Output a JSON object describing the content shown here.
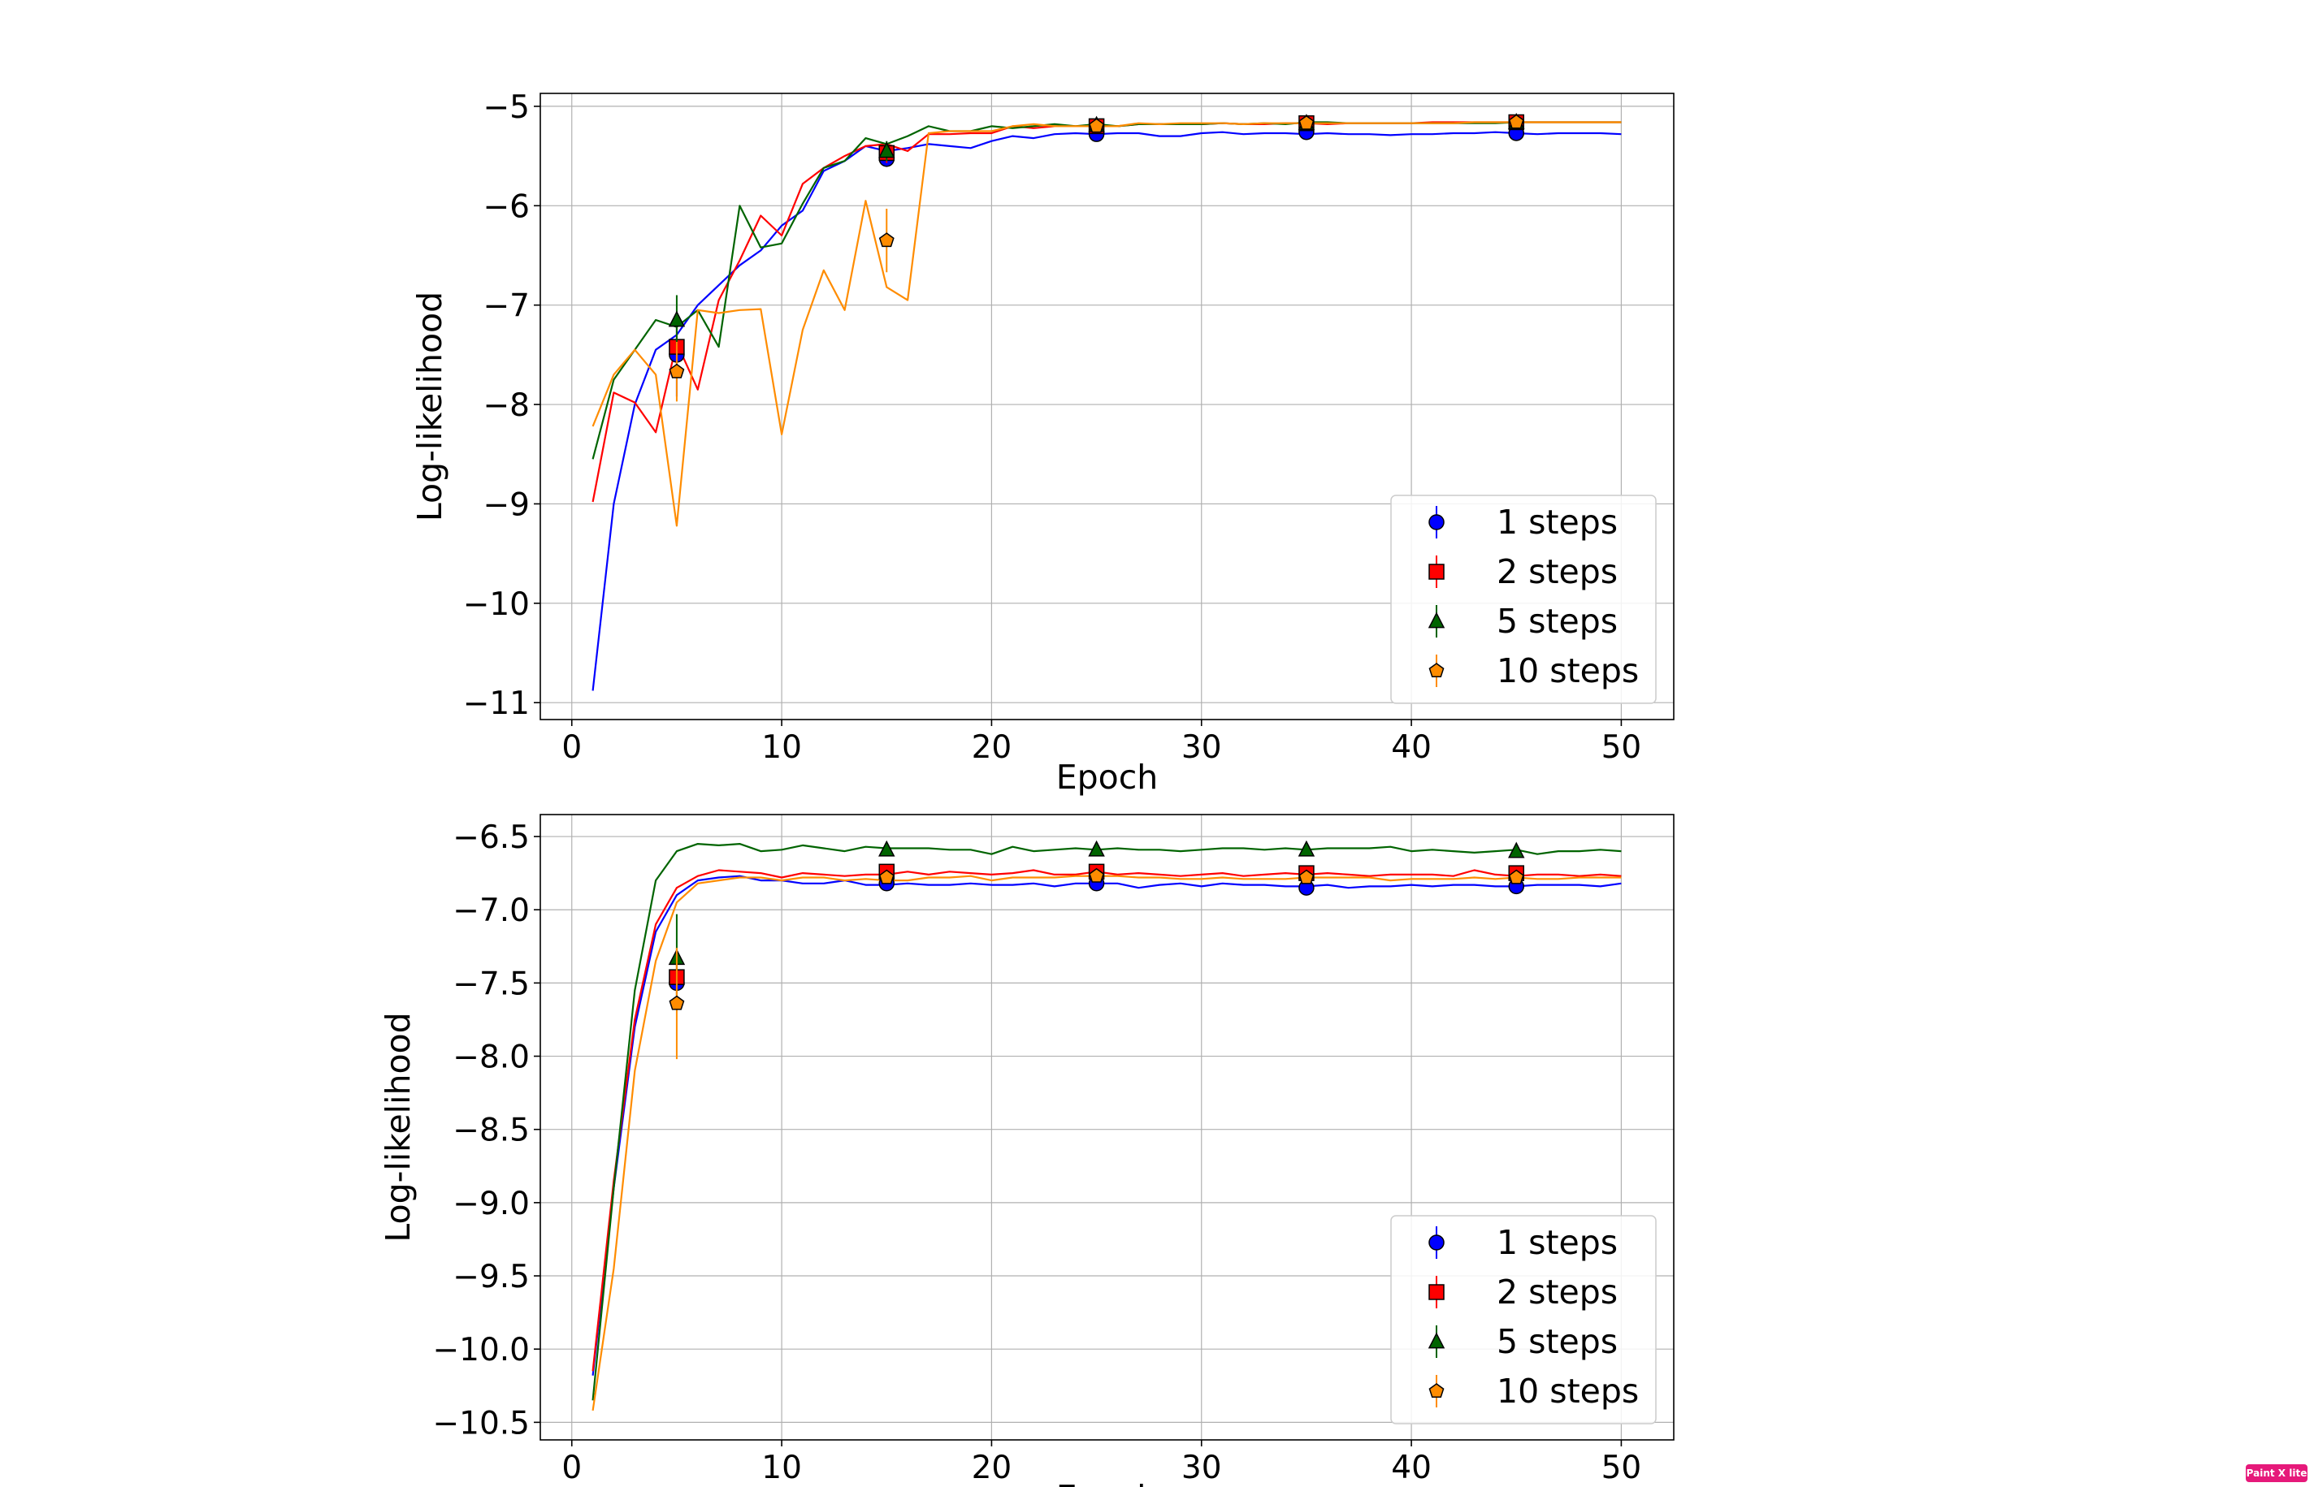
{
  "badge": {
    "text": "Paint X lite"
  },
  "colors": {
    "1 steps": "#0000ff",
    "2 steps": "#ff0000",
    "5 steps": "#006400",
    "10 steps": "#ff8c00",
    "grid": "#b0b0b0"
  },
  "chart_data": [
    {
      "type": "line",
      "title": "",
      "xlabel": "Epoch",
      "ylabel": "Log-likelihood",
      "xlim": [
        -1.5,
        52.5
      ],
      "ylim": [
        -11.17,
        -4.87
      ],
      "xticks": [
        0,
        10,
        20,
        30,
        40,
        50
      ],
      "xtick_labels": [
        "0",
        "10",
        "20",
        "30",
        "40",
        "50"
      ],
      "yticks": [
        -11,
        -10,
        -9,
        -8,
        -7,
        -6,
        -5
      ],
      "ytick_labels": [
        "−11",
        "−10",
        "−9",
        "−8",
        "−7",
        "−6",
        "−5"
      ],
      "grid": true,
      "legend_position": "lower right",
      "x": [
        1,
        2,
        3,
        4,
        5,
        6,
        7,
        8,
        9,
        10,
        11,
        12,
        13,
        14,
        15,
        16,
        17,
        18,
        19,
        20,
        21,
        22,
        23,
        24,
        25,
        26,
        27,
        28,
        29,
        30,
        31,
        32,
        33,
        34,
        35,
        36,
        37,
        38,
        39,
        40,
        41,
        42,
        43,
        44,
        45,
        46,
        47,
        48,
        49,
        50
      ],
      "series": [
        {
          "name": "1 steps",
          "marker": "circle",
          "values": [
            -10.88,
            -9.0,
            -8.0,
            -7.45,
            -7.3,
            -7.0,
            -6.8,
            -6.6,
            -6.45,
            -6.2,
            -6.05,
            -5.65,
            -5.55,
            -5.4,
            -5.45,
            -5.42,
            -5.38,
            -5.4,
            -5.42,
            -5.35,
            -5.3,
            -5.32,
            -5.28,
            -5.27,
            -5.28,
            -5.27,
            -5.27,
            -5.3,
            -5.3,
            -5.27,
            -5.26,
            -5.28,
            -5.27,
            -5.27,
            -5.28,
            -5.27,
            -5.28,
            -5.28,
            -5.29,
            -5.28,
            -5.28,
            -5.27,
            -5.27,
            -5.26,
            -5.27,
            -5.28,
            -5.27,
            -5.27,
            -5.27,
            -5.28
          ],
          "markers": {
            "x": [
              5,
              15,
              25,
              35,
              45
            ],
            "y": [
              -7.5,
              -5.53,
              -5.28,
              -5.26,
              -5.27
            ],
            "err": [
              0.42,
              0.08,
              0.04,
              0.03,
              0.03
            ]
          }
        },
        {
          "name": "2 steps",
          "marker": "square",
          "values": [
            -8.98,
            -7.88,
            -7.98,
            -8.28,
            -7.38,
            -7.85,
            -6.95,
            -6.55,
            -6.1,
            -6.3,
            -5.78,
            -5.62,
            -5.5,
            -5.4,
            -5.38,
            -5.45,
            -5.28,
            -5.28,
            -5.27,
            -5.27,
            -5.2,
            -5.22,
            -5.2,
            -5.2,
            -5.2,
            -5.2,
            -5.18,
            -5.18,
            -5.18,
            -5.18,
            -5.17,
            -5.18,
            -5.18,
            -5.17,
            -5.17,
            -5.18,
            -5.17,
            -5.17,
            -5.17,
            -5.17,
            -5.16,
            -5.16,
            -5.16,
            -5.16,
            -5.16,
            -5.16,
            -5.16,
            -5.16,
            -5.16,
            -5.16
          ],
          "markers": {
            "x": [
              5,
              15,
              25,
              35,
              45
            ],
            "y": [
              -7.42,
              -5.47,
              -5.2,
              -5.17,
              -5.16
            ],
            "err": [
              0.2,
              0.1,
              0.03,
              0.02,
              0.02
            ]
          }
        },
        {
          "name": "5 steps",
          "marker": "triangle",
          "values": [
            -8.55,
            -7.75,
            -7.45,
            -7.15,
            -7.22,
            -7.05,
            -7.42,
            -6.0,
            -6.42,
            -6.38,
            -5.98,
            -5.62,
            -5.55,
            -5.32,
            -5.38,
            -5.3,
            -5.2,
            -5.25,
            -5.25,
            -5.2,
            -5.22,
            -5.2,
            -5.18,
            -5.2,
            -5.18,
            -5.2,
            -5.18,
            -5.18,
            -5.18,
            -5.18,
            -5.17,
            -5.18,
            -5.17,
            -5.18,
            -5.16,
            -5.16,
            -5.17,
            -5.17,
            -5.17,
            -5.17,
            -5.17,
            -5.17,
            -5.17,
            -5.17,
            -5.16,
            -5.16,
            -5.16,
            -5.16,
            -5.16,
            -5.16
          ],
          "markers": {
            "x": [
              5,
              15,
              25,
              35,
              45
            ],
            "y": [
              -7.15,
              -5.45,
              -5.19,
              -5.17,
              -5.16
            ],
            "err": [
              0.25,
              0.1,
              0.03,
              0.02,
              0.02
            ]
          }
        },
        {
          "name": "10 steps",
          "marker": "pentagon",
          "values": [
            -8.22,
            -7.7,
            -7.45,
            -7.7,
            -9.22,
            -7.05,
            -7.08,
            -7.05,
            -7.04,
            -8.3,
            -7.25,
            -6.65,
            -7.05,
            -5.95,
            -6.82,
            -6.95,
            -5.27,
            -5.25,
            -5.25,
            -5.25,
            -5.2,
            -5.18,
            -5.2,
            -5.2,
            -5.2,
            -5.2,
            -5.17,
            -5.18,
            -5.17,
            -5.17,
            -5.17,
            -5.18,
            -5.17,
            -5.17,
            -5.17,
            -5.17,
            -5.17,
            -5.17,
            -5.17,
            -5.17,
            -5.17,
            -5.17,
            -5.16,
            -5.16,
            -5.16,
            -5.16,
            -5.16,
            -5.16,
            -5.16,
            -5.16
          ],
          "markers": {
            "x": [
              5,
              15,
              25,
              35,
              45
            ],
            "y": [
              -7.67,
              -6.35,
              -5.2,
              -5.17,
              -5.16
            ],
            "err": [
              0.3,
              0.32,
              0.03,
              0.02,
              0.02
            ]
          }
        }
      ]
    },
    {
      "type": "line",
      "title": "",
      "xlabel": "Epoch",
      "ylabel": "Log-likelihood",
      "xlim": [
        -1.5,
        52.5
      ],
      "ylim": [
        -10.62,
        -6.35
      ],
      "xticks": [
        0,
        10,
        20,
        30,
        40,
        50
      ],
      "xtick_labels": [
        "0",
        "10",
        "20",
        "30",
        "40",
        "50"
      ],
      "yticks": [
        -10.5,
        -10.0,
        -9.5,
        -9.0,
        -8.5,
        -8.0,
        -7.5,
        -7.0,
        -6.5
      ],
      "ytick_labels": [
        "−10.5",
        "−10.0",
        "−9.5",
        "−9.0",
        "−8.5",
        "−8.0",
        "−7.5",
        "−7.0",
        "−6.5"
      ],
      "grid": true,
      "legend_position": "lower right",
      "x": [
        1,
        2,
        3,
        4,
        5,
        6,
        7,
        8,
        9,
        10,
        11,
        12,
        13,
        14,
        15,
        16,
        17,
        18,
        19,
        20,
        21,
        22,
        23,
        24,
        25,
        26,
        27,
        28,
        29,
        30,
        31,
        32,
        33,
        34,
        35,
        36,
        37,
        38,
        39,
        40,
        41,
        42,
        43,
        44,
        45,
        46,
        47,
        48,
        49,
        50
      ],
      "series": [
        {
          "name": "1 steps",
          "marker": "circle",
          "values": [
            -10.18,
            -8.9,
            -7.8,
            -7.15,
            -6.9,
            -6.8,
            -6.78,
            -6.77,
            -6.8,
            -6.8,
            -6.82,
            -6.82,
            -6.8,
            -6.83,
            -6.83,
            -6.82,
            -6.83,
            -6.83,
            -6.82,
            -6.83,
            -6.83,
            -6.82,
            -6.84,
            -6.82,
            -6.82,
            -6.82,
            -6.85,
            -6.83,
            -6.82,
            -6.84,
            -6.82,
            -6.83,
            -6.83,
            -6.84,
            -6.84,
            -6.83,
            -6.85,
            -6.84,
            -6.84,
            -6.83,
            -6.84,
            -6.83,
            -6.83,
            -6.84,
            -6.84,
            -6.83,
            -6.83,
            -6.83,
            -6.84,
            -6.82
          ],
          "markers": {
            "x": [
              5,
              15,
              25,
              35,
              45
            ],
            "y": [
              -7.5,
              -6.82,
              -6.82,
              -6.85,
              -6.84
            ],
            "err": [
              0.05,
              0.02,
              0.02,
              0.02,
              0.02
            ]
          }
        },
        {
          "name": "2 steps",
          "marker": "square",
          "values": [
            -10.15,
            -8.85,
            -7.75,
            -7.1,
            -6.85,
            -6.77,
            -6.73,
            -6.74,
            -6.75,
            -6.78,
            -6.75,
            -6.76,
            -6.77,
            -6.76,
            -6.76,
            -6.74,
            -6.76,
            -6.74,
            -6.75,
            -6.76,
            -6.75,
            -6.73,
            -6.76,
            -6.76,
            -6.74,
            -6.76,
            -6.75,
            -6.76,
            -6.77,
            -6.76,
            -6.75,
            -6.77,
            -6.76,
            -6.75,
            -6.76,
            -6.75,
            -6.76,
            -6.77,
            -6.76,
            -6.76,
            -6.76,
            -6.77,
            -6.73,
            -6.76,
            -6.77,
            -6.76,
            -6.76,
            -6.77,
            -6.76,
            -6.77
          ],
          "markers": {
            "x": [
              5,
              15,
              25,
              35,
              45
            ],
            "y": [
              -7.46,
              -6.74,
              -6.74,
              -6.75,
              -6.75
            ],
            "err": [
              0.12,
              0.03,
              0.02,
              0.02,
              0.02
            ]
          }
        },
        {
          "name": "5 steps",
          "marker": "triangle",
          "values": [
            -10.35,
            -8.9,
            -7.55,
            -6.8,
            -6.6,
            -6.55,
            -6.56,
            -6.55,
            -6.6,
            -6.59,
            -6.56,
            -6.58,
            -6.6,
            -6.57,
            -6.58,
            -6.58,
            -6.58,
            -6.59,
            -6.59,
            -6.62,
            -6.57,
            -6.6,
            -6.59,
            -6.58,
            -6.59,
            -6.58,
            -6.59,
            -6.59,
            -6.6,
            -6.59,
            -6.58,
            -6.58,
            -6.59,
            -6.58,
            -6.59,
            -6.58,
            -6.58,
            -6.58,
            -6.57,
            -6.6,
            -6.59,
            -6.6,
            -6.61,
            -6.6,
            -6.59,
            -6.62,
            -6.6,
            -6.6,
            -6.59,
            -6.6
          ],
          "markers": {
            "x": [
              5,
              15,
              25,
              35,
              45
            ],
            "y": [
              -7.33,
              -6.59,
              -6.59,
              -6.59,
              -6.6
            ],
            "err": [
              0.3,
              0.02,
              0.02,
              0.02,
              0.02
            ]
          }
        },
        {
          "name": "10 steps",
          "marker": "pentagon",
          "values": [
            -10.42,
            -9.45,
            -8.1,
            -7.35,
            -6.95,
            -6.82,
            -6.8,
            -6.78,
            -6.78,
            -6.8,
            -6.78,
            -6.78,
            -6.8,
            -6.79,
            -6.8,
            -6.8,
            -6.78,
            -6.78,
            -6.77,
            -6.8,
            -6.78,
            -6.78,
            -6.78,
            -6.77,
            -6.77,
            -6.77,
            -6.78,
            -6.78,
            -6.79,
            -6.79,
            -6.78,
            -6.79,
            -6.79,
            -6.79,
            -6.78,
            -6.78,
            -6.78,
            -6.78,
            -6.8,
            -6.79,
            -6.79,
            -6.79,
            -6.78,
            -6.79,
            -6.78,
            -6.79,
            -6.79,
            -6.78,
            -6.78,
            -6.78
          ],
          "markers": {
            "x": [
              5,
              15,
              25,
              35,
              45
            ],
            "y": [
              -7.64,
              -6.78,
              -6.77,
              -6.78,
              -6.78
            ],
            "err": [
              0.38,
              0.03,
              0.02,
              0.02,
              0.02
            ]
          }
        }
      ]
    }
  ]
}
